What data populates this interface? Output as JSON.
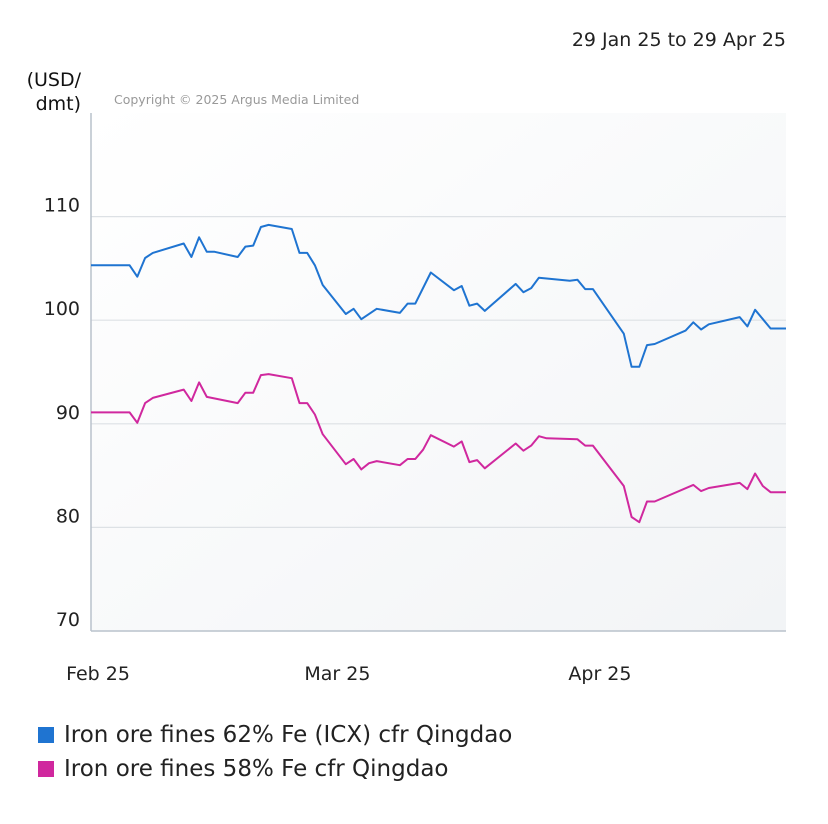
{
  "chart_data": {
    "type": "line",
    "date_range": "29 Jan 25 to 29 Apr 25",
    "ylabel_line1": "(USD/",
    "ylabel_line2": "dmt)",
    "copyright": "Copyright © 2025 Argus Media Limited",
    "ylim": [
      70,
      120
    ],
    "yticks": [
      70,
      80,
      90,
      100,
      110
    ],
    "xlim": [
      "2025-01-29",
      "2025-04-29"
    ],
    "xticks": [
      {
        "label": "Feb 25",
        "date": "2025-01-29"
      },
      {
        "label": "Mar 25",
        "date": "2025-03-01"
      },
      {
        "label": "Apr 25",
        "date": "2025-04-04"
      }
    ],
    "grid": true,
    "legend_position": "bottom-left",
    "series": [
      {
        "name": "Iron ore fines 62% Fe (ICX) cfr Qingdao",
        "color": "#1f74d1",
        "points": [
          [
            "2025-01-29",
            105.3
          ],
          [
            "2025-02-03",
            105.3
          ],
          [
            "2025-02-04",
            104.2
          ],
          [
            "2025-02-05",
            106.0
          ],
          [
            "2025-02-06",
            106.5
          ],
          [
            "2025-02-10",
            107.4
          ],
          [
            "2025-02-11",
            106.1
          ],
          [
            "2025-02-12",
            108.0
          ],
          [
            "2025-02-13",
            106.6
          ],
          [
            "2025-02-14",
            106.6
          ],
          [
            "2025-02-17",
            106.1
          ],
          [
            "2025-02-18",
            107.1
          ],
          [
            "2025-02-19",
            107.2
          ],
          [
            "2025-02-20",
            109.0
          ],
          [
            "2025-02-21",
            109.2
          ],
          [
            "2025-02-24",
            108.8
          ],
          [
            "2025-02-25",
            106.5
          ],
          [
            "2025-02-26",
            106.5
          ],
          [
            "2025-02-27",
            105.3
          ],
          [
            "2025-02-28",
            103.4
          ],
          [
            "2025-03-03",
            100.6
          ],
          [
            "2025-03-04",
            101.1
          ],
          [
            "2025-03-05",
            100.1
          ],
          [
            "2025-03-07",
            101.1
          ],
          [
            "2025-03-10",
            100.7
          ],
          [
            "2025-03-11",
            101.6
          ],
          [
            "2025-03-12",
            101.6
          ],
          [
            "2025-03-14",
            104.6
          ],
          [
            "2025-03-17",
            102.9
          ],
          [
            "2025-03-18",
            103.3
          ],
          [
            "2025-03-19",
            101.4
          ],
          [
            "2025-03-20",
            101.6
          ],
          [
            "2025-03-21",
            100.9
          ],
          [
            "2025-03-25",
            103.5
          ],
          [
            "2025-03-26",
            102.7
          ],
          [
            "2025-03-27",
            103.1
          ],
          [
            "2025-03-28",
            104.1
          ],
          [
            "2025-04-01",
            103.8
          ],
          [
            "2025-04-02",
            103.9
          ],
          [
            "2025-04-03",
            103.0
          ],
          [
            "2025-04-04",
            103.0
          ],
          [
            "2025-04-08",
            98.7
          ],
          [
            "2025-04-09",
            95.5
          ],
          [
            "2025-04-10",
            95.5
          ],
          [
            "2025-04-11",
            97.6
          ],
          [
            "2025-04-12",
            97.7
          ],
          [
            "2025-04-16",
            99.0
          ],
          [
            "2025-04-17",
            99.8
          ],
          [
            "2025-04-18",
            99.1
          ],
          [
            "2025-04-19",
            99.6
          ],
          [
            "2025-04-23",
            100.3
          ],
          [
            "2025-04-24",
            99.4
          ],
          [
            "2025-04-25",
            101.0
          ],
          [
            "2025-04-27",
            99.2
          ],
          [
            "2025-04-29",
            99.2
          ]
        ]
      },
      {
        "name": "Iron ore fines 58% Fe cfr Qingdao",
        "color": "#d0289e",
        "points": [
          [
            "2025-01-29",
            91.1
          ],
          [
            "2025-02-03",
            91.1
          ],
          [
            "2025-02-04",
            90.1
          ],
          [
            "2025-02-05",
            92.0
          ],
          [
            "2025-02-06",
            92.5
          ],
          [
            "2025-02-10",
            93.3
          ],
          [
            "2025-02-11",
            92.2
          ],
          [
            "2025-02-12",
            94.0
          ],
          [
            "2025-02-13",
            92.6
          ],
          [
            "2025-02-17",
            92.0
          ],
          [
            "2025-02-18",
            93.0
          ],
          [
            "2025-02-19",
            93.0
          ],
          [
            "2025-02-20",
            94.7
          ],
          [
            "2025-02-21",
            94.8
          ],
          [
            "2025-02-24",
            94.4
          ],
          [
            "2025-02-25",
            92.0
          ],
          [
            "2025-02-26",
            92.0
          ],
          [
            "2025-02-27",
            90.9
          ],
          [
            "2025-02-28",
            89.0
          ],
          [
            "2025-03-03",
            86.1
          ],
          [
            "2025-03-04",
            86.6
          ],
          [
            "2025-03-05",
            85.6
          ],
          [
            "2025-03-06",
            86.2
          ],
          [
            "2025-03-07",
            86.4
          ],
          [
            "2025-03-10",
            86.0
          ],
          [
            "2025-03-11",
            86.6
          ],
          [
            "2025-03-12",
            86.6
          ],
          [
            "2025-03-13",
            87.5
          ],
          [
            "2025-03-14",
            88.9
          ],
          [
            "2025-03-17",
            87.8
          ],
          [
            "2025-03-18",
            88.3
          ],
          [
            "2025-03-19",
            86.3
          ],
          [
            "2025-03-20",
            86.5
          ],
          [
            "2025-03-21",
            85.7
          ],
          [
            "2025-03-25",
            88.1
          ],
          [
            "2025-03-26",
            87.4
          ],
          [
            "2025-03-27",
            87.9
          ],
          [
            "2025-03-28",
            88.8
          ],
          [
            "2025-03-29",
            88.6
          ],
          [
            "2025-04-02",
            88.5
          ],
          [
            "2025-04-03",
            87.9
          ],
          [
            "2025-04-04",
            87.9
          ],
          [
            "2025-04-08",
            84.0
          ],
          [
            "2025-04-09",
            81.0
          ],
          [
            "2025-04-10",
            80.5
          ],
          [
            "2025-04-11",
            82.5
          ],
          [
            "2025-04-12",
            82.5
          ],
          [
            "2025-04-17",
            84.1
          ],
          [
            "2025-04-18",
            83.5
          ],
          [
            "2025-04-19",
            83.8
          ],
          [
            "2025-04-23",
            84.3
          ],
          [
            "2025-04-24",
            83.7
          ],
          [
            "2025-04-25",
            85.2
          ],
          [
            "2025-04-26",
            84.0
          ],
          [
            "2025-04-27",
            83.4
          ],
          [
            "2025-04-29",
            83.4
          ]
        ]
      }
    ]
  }
}
